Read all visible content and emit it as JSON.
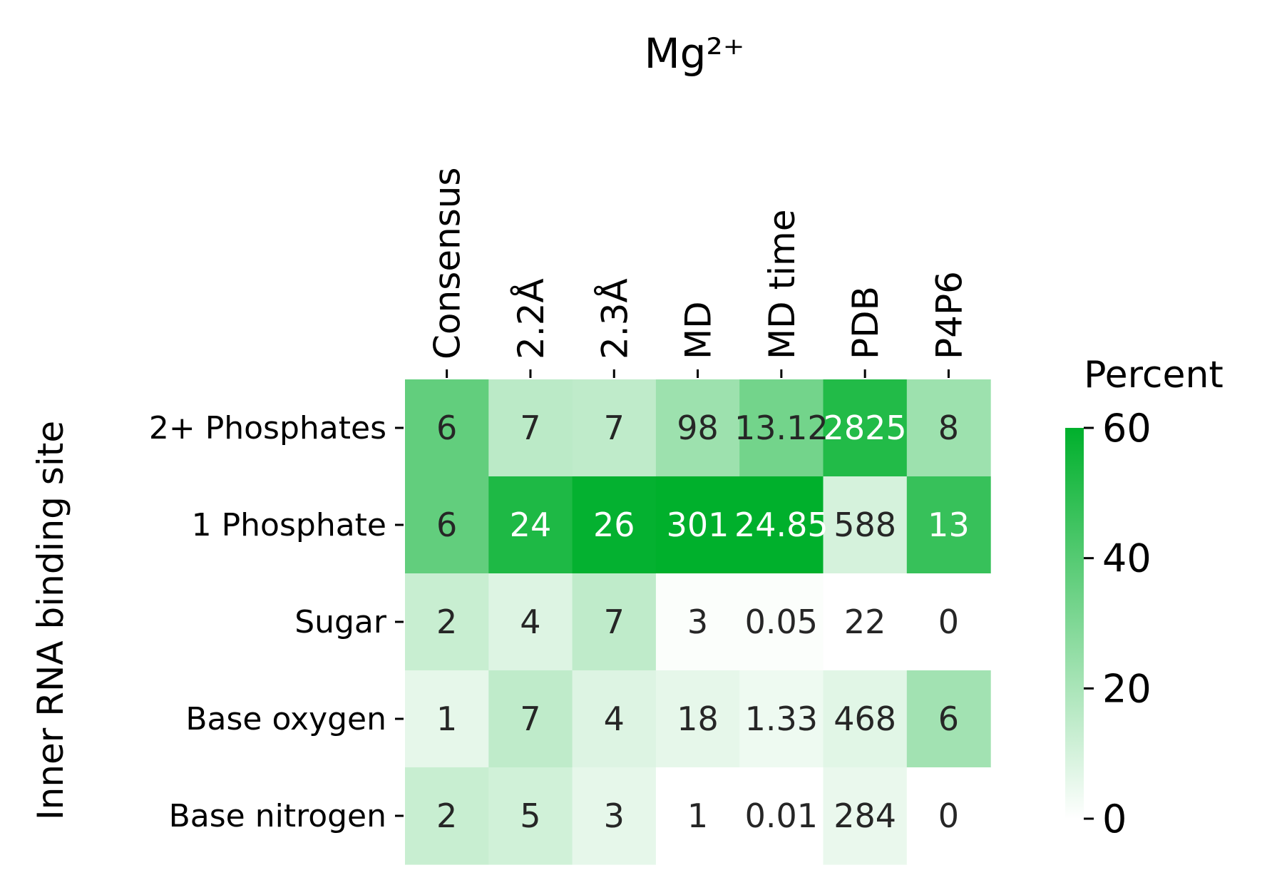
{
  "chart_data": {
    "type": "heatmap",
    "title": "Mg²⁺",
    "xlabel": "",
    "ylabel": "Inner RNA binding site",
    "columns": [
      "Consensus",
      "2.2Å",
      "2.3Å",
      "MD",
      "MD time",
      "PDB",
      "P4P6"
    ],
    "rows": [
      "2+ Phosphates",
      "1 Phosphate",
      "Sugar",
      "Base oxygen",
      "Base nitrogen"
    ],
    "annotations": [
      [
        "6",
        "7",
        "7",
        "98",
        "13.12",
        "2825",
        "8"
      ],
      [
        "6",
        "24",
        "26",
        "301",
        "24.85",
        "588",
        "13"
      ],
      [
        "2",
        "4",
        "7",
        "3",
        "0.05",
        "22",
        "0"
      ],
      [
        "1",
        "7",
        "4",
        "18",
        "1.33",
        "468",
        "6"
      ],
      [
        "2",
        "5",
        "3",
        "1",
        "0.01",
        "284",
        "0"
      ]
    ],
    "percent_values": [
      [
        37,
        16,
        15,
        23,
        33,
        52,
        23
      ],
      [
        37,
        53,
        59,
        60,
        60,
        10,
        47
      ],
      [
        13,
        8,
        15,
        1,
        1,
        0,
        0
      ],
      [
        6,
        15,
        8,
        6,
        4,
        7,
        22
      ],
      [
        13,
        11,
        6,
        0,
        0,
        5,
        0
      ]
    ],
    "colorbar": {
      "label": "Percent",
      "min": 0,
      "max": 60,
      "ticks": [
        "0",
        "20",
        "40",
        "60"
      ]
    },
    "colors": {
      "low": "#ffffff",
      "high": "#00b02c",
      "text_dark": "#262626",
      "text_light": "#ffffff",
      "axis": "#000000"
    }
  }
}
